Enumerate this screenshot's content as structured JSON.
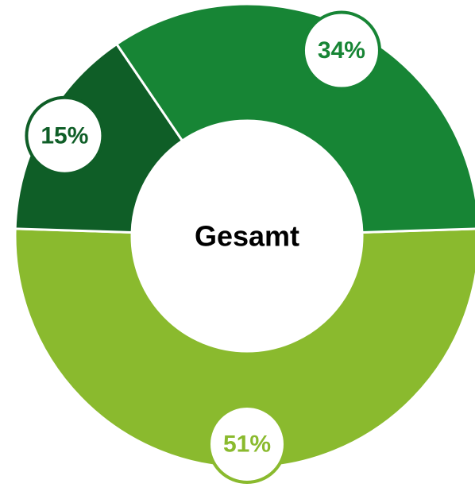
{
  "chart_data": {
    "type": "donut",
    "center_label": "Gesamt",
    "values": [
      51,
      15,
      34
    ],
    "value_labels": [
      "51%",
      "15%",
      "34%"
    ],
    "colors": [
      "#8aba2e",
      "#0f5e27",
      "#178535"
    ]
  }
}
